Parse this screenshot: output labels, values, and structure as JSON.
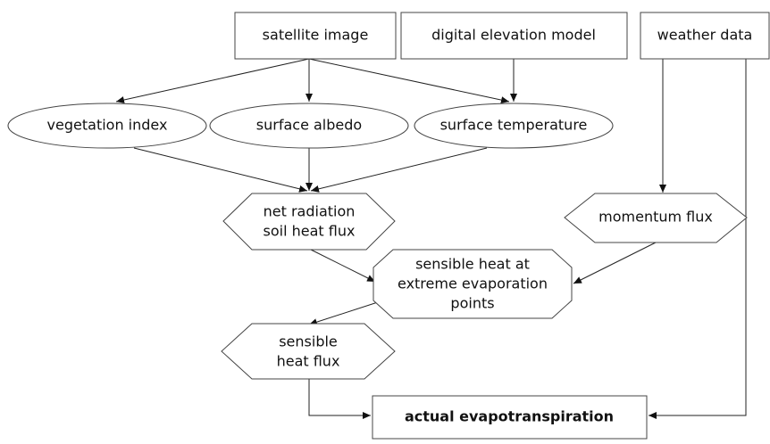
{
  "nodes": [
    {
      "label": [
        "satellite image"
      ]
    },
    {
      "label": [
        "digital elevation model"
      ]
    },
    {
      "label": [
        "weather data"
      ]
    },
    {
      "label": [
        "vegetation index"
      ]
    },
    {
      "label": [
        "surface albedo"
      ]
    },
    {
      "label": [
        "surface temperature"
      ]
    },
    {
      "label": [
        "net radiation",
        "soil heat flux"
      ]
    },
    {
      "label": [
        "momentum flux"
      ]
    },
    {
      "label": [
        "sensible heat at",
        "extreme evaporation",
        "points"
      ]
    },
    {
      "label": [
        "sensible",
        "heat flux"
      ]
    },
    {
      "label": [
        "actual evapotranspiration"
      ]
    }
  ]
}
